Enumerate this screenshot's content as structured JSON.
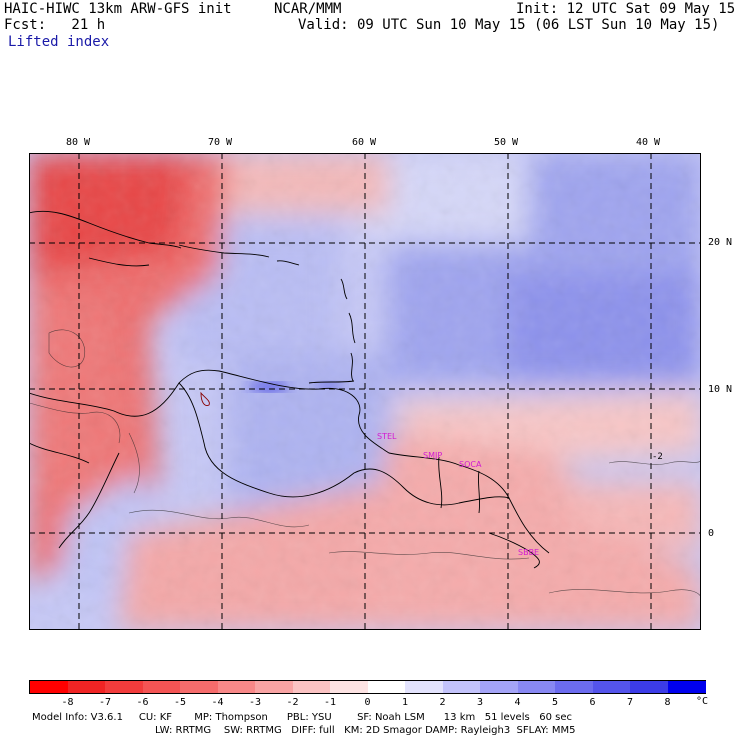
{
  "header": {
    "model": "HAIC-HIWC 13km ARW-GFS init",
    "org": "NCAR/MMM",
    "init": "Init: 12 UTC Sat 09 May 15",
    "fcst": "Fcst:   21 h",
    "valid": "Valid: 09 UTC Sun 10 May 15 (06 LST Sun 10 May 15)",
    "field": "Lifted index"
  },
  "map": {
    "lon_labels": [
      "80 W",
      "70 W",
      "60 W",
      "50 W",
      "40 W"
    ],
    "lat_labels": [
      "20 N",
      "10 N",
      "0"
    ],
    "contour_labels": [
      "-2"
    ],
    "site_labels": [
      "STEL",
      "SMJP",
      "SOCA",
      "SBBE"
    ]
  },
  "colorbar": {
    "ticks": [
      "-8",
      "-7",
      "-6",
      "-5",
      "-4",
      "-3",
      "-2",
      "-1",
      "0",
      "1",
      "2",
      "3",
      "4",
      "5",
      "6",
      "7",
      "8"
    ],
    "unit": "°C",
    "colors": [
      "#ff0000",
      "#f02424",
      "#f23c3c",
      "#f45454",
      "#f66c6c",
      "#f88888",
      "#f9a4a4",
      "#fbc3c3",
      "#fde3e3",
      "#ffffff",
      "#e3e3fd",
      "#c3c3fb",
      "#a4a4f7",
      "#8888f3",
      "#6c6cef",
      "#5454eb",
      "#3c3ce7",
      "#0000ee"
    ]
  },
  "model_info": {
    "line1": "Model Info: V3.6.1     CU: KF       MP: Thompson      PBL: YSU        SF: Noah LSM      13 km   51 levels   60 sec",
    "line2": "LW: RRTMG    SW: RRTMG   DIFF: full   KM: 2D Smagor DAMP: Rayleigh3  SFLAY: MM5"
  }
}
